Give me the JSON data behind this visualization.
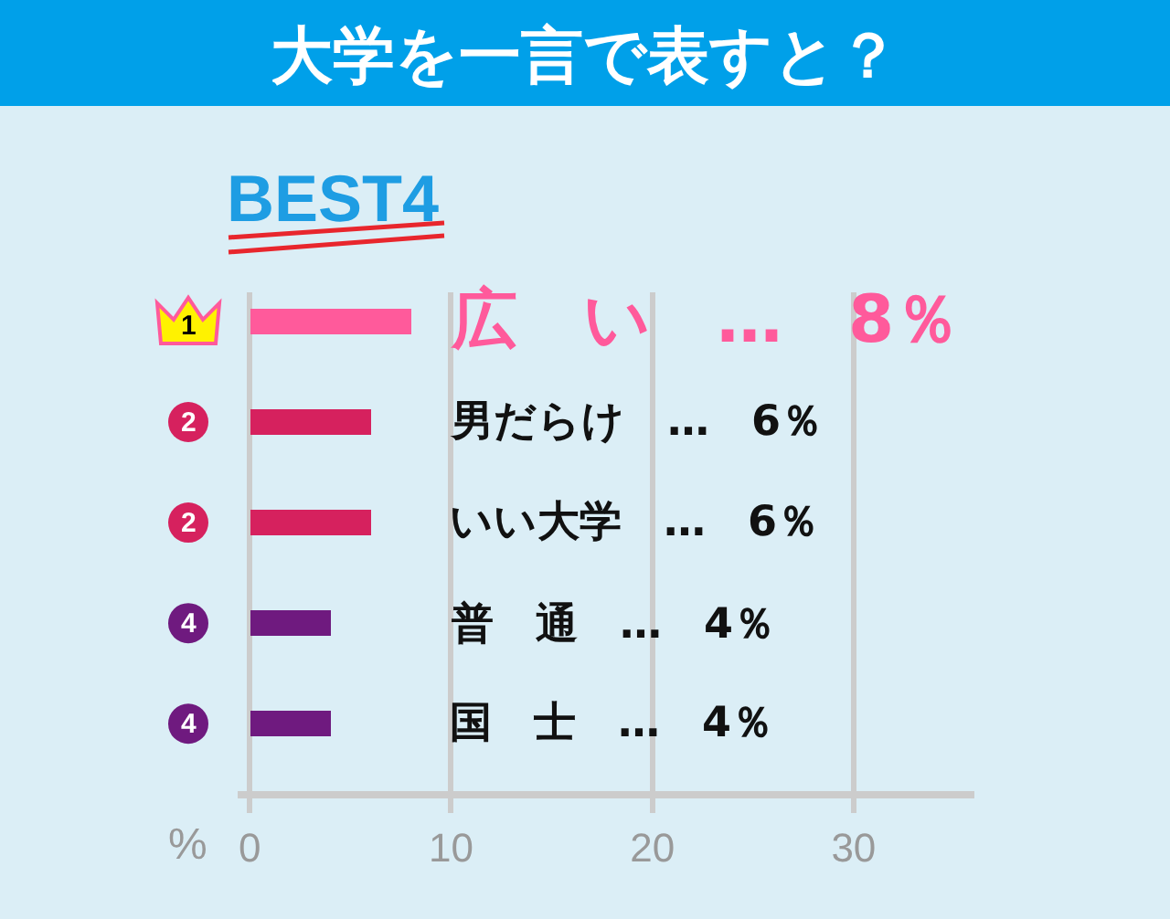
{
  "chart_data": {
    "type": "bar",
    "orientation": "horizontal",
    "title": "大学を一言で表すと？",
    "subtitle": "BEST4",
    "xlabel": "%",
    "categories": [
      "1",
      "2",
      "2",
      "4",
      "4"
    ],
    "values": [
      8,
      6,
      6,
      4,
      4
    ],
    "colors": [
      "#ff5a9b",
      "#d6215e",
      "#d6215e",
      "#6f1a7f",
      "#6f1a7f"
    ],
    "value_labels": [
      "広　い　…　8％",
      "男だらけ　…　6％",
      "いい大学　…　6％",
      "普　通　…　4％",
      "国　士　…　4％"
    ],
    "xlim": [
      -0.6,
      36
    ],
    "xticks": [
      0,
      10,
      20,
      30
    ],
    "grid": "x"
  }
}
